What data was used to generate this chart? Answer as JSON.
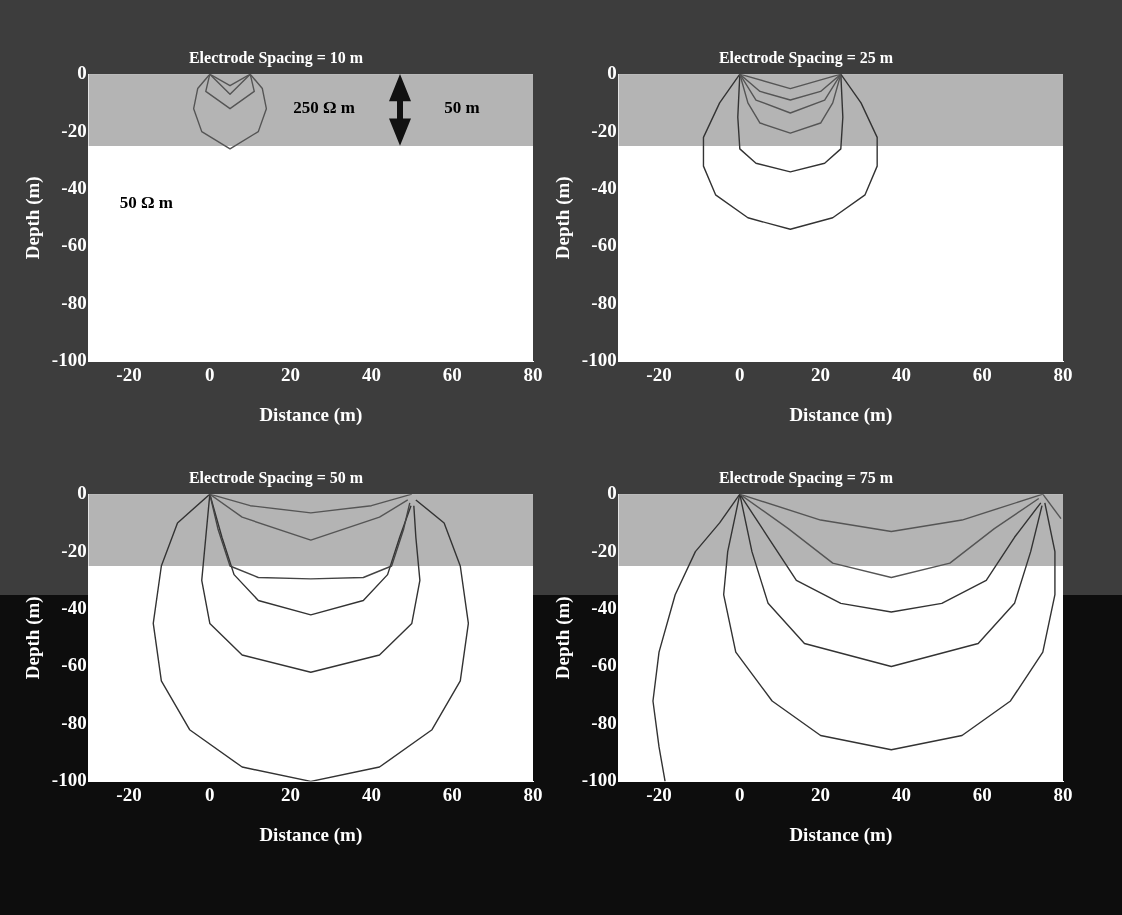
{
  "chart_data": [
    {
      "type": "line",
      "title": "Electrode Spacing = 10 m",
      "xlabel": "Distance (m)",
      "ylabel": "Depth (m)",
      "xlim": [
        -30,
        80
      ],
      "ylim": [
        -100,
        0
      ],
      "xticks": [
        -20,
        0,
        20,
        40,
        60,
        80
      ],
      "yticks": [
        -100,
        -80,
        -60,
        -40,
        -20,
        0
      ],
      "grid": false,
      "legend": false,
      "marker": "none",
      "line_style": "solid",
      "bands": [
        {
          "axis": "y",
          "from": -25,
          "to": 0,
          "color": "#b4b4b4"
        }
      ],
      "annotations": [
        "250 Ω m",
        "50 m",
        "50 Ω m"
      ],
      "series": [
        {
          "color": "#555555",
          "x": [
            0,
            -3,
            -4,
            -2,
            5,
            12,
            14,
            13,
            10
          ],
          "values": [
            0,
            -5,
            -12,
            -20,
            -26,
            -20,
            -12,
            -5,
            0
          ]
        },
        {
          "color": "#555555",
          "x": [
            0,
            -1,
            5,
            11,
            10
          ],
          "values": [
            0,
            -6,
            -12,
            -6,
            0
          ]
        },
        {
          "color": "#555555",
          "x": [
            0,
            5,
            10
          ],
          "values": [
            0,
            -7,
            0
          ]
        },
        {
          "color": "#555555",
          "x": [
            0,
            5,
            10
          ],
          "values": [
            0,
            -4,
            0
          ]
        }
      ]
    },
    {
      "type": "line",
      "title": "Electrode Spacing = 25 m",
      "xlabel": "Distance (m)",
      "ylabel": "Depth (m)",
      "xlim": [
        -30,
        80
      ],
      "ylim": [
        -100,
        0
      ],
      "xticks": [
        -20,
        0,
        20,
        40,
        60,
        80
      ],
      "yticks": [
        -100,
        -80,
        -60,
        -40,
        -20,
        0
      ],
      "grid": false,
      "legend": false,
      "marker": "none",
      "line_style": "solid",
      "bands": [
        {
          "axis": "y",
          "from": -25,
          "to": 0,
          "color": "#b4b4b4"
        }
      ],
      "series": [
        {
          "color": "#555555",
          "x": [
            0,
            12.5,
            25
          ],
          "values": [
            0,
            -5,
            0
          ]
        },
        {
          "color": "#555555",
          "x": [
            0,
            5,
            12.5,
            20,
            25
          ],
          "values": [
            0,
            -6,
            -9,
            -6,
            0
          ]
        },
        {
          "color": "#555555",
          "x": [
            0,
            4,
            12.5,
            21,
            25
          ],
          "values": [
            0,
            -9,
            -13.5,
            -9,
            0
          ]
        },
        {
          "color": "#555555",
          "x": [
            0,
            2,
            5,
            12.5,
            20,
            23,
            25
          ],
          "values": [
            0,
            -10,
            -17,
            -20.5,
            -17,
            -10,
            0
          ]
        },
        {
          "color": "#333333",
          "x": [
            0,
            -0.5,
            0,
            4,
            12.5,
            21,
            25,
            25.5,
            25
          ],
          "values": [
            0,
            -15,
            -26,
            -31,
            -34,
            -31,
            -26,
            -15,
            0
          ]
        },
        {
          "color": "#333333",
          "x": [
            0,
            -5,
            -9,
            -9,
            -6,
            2,
            12.5,
            23,
            31,
            34,
            34,
            30,
            25
          ],
          "values": [
            0,
            -10,
            -22,
            -32,
            -42,
            -50,
            -54,
            -50,
            -42,
            -32,
            -22,
            -10,
            0
          ]
        }
      ]
    },
    {
      "type": "line",
      "title": "Electrode Spacing = 50 m",
      "xlabel": "Distance (m)",
      "ylabel": "Depth (m)",
      "xlim": [
        -30,
        80
      ],
      "ylim": [
        -100,
        0
      ],
      "xticks": [
        -20,
        0,
        20,
        40,
        60,
        80
      ],
      "yticks": [
        -100,
        -80,
        -60,
        -40,
        -20,
        0
      ],
      "grid": false,
      "legend": false,
      "marker": "none",
      "line_style": "solid",
      "bands": [
        {
          "axis": "y",
          "from": -25,
          "to": 0,
          "color": "#b4b4b4"
        }
      ],
      "series": [
        {
          "color": "#555555",
          "x": [
            0,
            10,
            25,
            40,
            50
          ],
          "values": [
            0,
            -4,
            -6.5,
            -4,
            0
          ]
        },
        {
          "color": "#555555",
          "x": [
            0,
            8,
            25,
            42,
            49
          ],
          "values": [
            0,
            -8,
            -16,
            -8,
            -2
          ]
        },
        {
          "color": "#444444",
          "x": [
            0,
            2,
            5,
            12,
            25,
            38,
            45,
            48,
            49.5
          ],
          "values": [
            0,
            -12,
            -25,
            -29,
            -29.5,
            -29,
            -25,
            -12,
            -3
          ]
        },
        {
          "color": "#333333",
          "x": [
            0,
            3,
            6,
            12,
            25,
            38,
            44,
            47,
            49.8
          ],
          "values": [
            0,
            -15,
            -28,
            -37,
            -42,
            -37,
            -28,
            -15,
            -4
          ]
        },
        {
          "color": "#333333",
          "x": [
            0,
            -1,
            -2,
            0,
            8,
            25,
            42,
            50,
            52,
            51,
            50.5
          ],
          "values": [
            0,
            -15,
            -30,
            -45,
            -56,
            -62,
            -56,
            -45,
            -30,
            -15,
            -4
          ]
        },
        {
          "color": "#333333",
          "x": [
            0,
            -8,
            -12,
            -14,
            -12,
            -5,
            8,
            25,
            42,
            55,
            62,
            64,
            62,
            58,
            51
          ],
          "values": [
            0,
            -10,
            -25,
            -45,
            -65,
            -82,
            -95,
            -100,
            -95,
            -82,
            -65,
            -45,
            -25,
            -10,
            -2
          ]
        }
      ]
    },
    {
      "type": "line",
      "title": "Electrode Spacing = 75 m",
      "xlabel": "Distance (m)",
      "ylabel": "Depth (m)",
      "xlim": [
        -30,
        80
      ],
      "ylim": [
        -100,
        0
      ],
      "xticks": [
        -20,
        0,
        20,
        40,
        60,
        80
      ],
      "yticks": [
        -100,
        -80,
        -60,
        -40,
        -20,
        0
      ],
      "grid": false,
      "legend": false,
      "marker": "none",
      "line_style": "solid",
      "bands": [
        {
          "axis": "y",
          "from": -25,
          "to": 0,
          "color": "#b4b4b4"
        }
      ],
      "series": [
        {
          "color": "#555555",
          "x": [
            0,
            20,
            37.5,
            55,
            75
          ],
          "values": [
            0,
            -9,
            -13,
            -9,
            0
          ]
        },
        {
          "color": "#555555",
          "x": [
            0,
            12,
            23,
            37.5,
            52,
            63,
            74
          ],
          "values": [
            0,
            -12,
            -24,
            -29,
            -24,
            -12,
            -1.5
          ]
        },
        {
          "color": "#333333",
          "x": [
            0,
            7,
            14,
            25,
            37.5,
            50,
            61,
            68,
            74.5
          ],
          "values": [
            0,
            -15,
            -30,
            -38,
            -41,
            -38,
            -30,
            -15,
            -3
          ]
        },
        {
          "color": "#333333",
          "x": [
            0,
            3,
            7,
            16,
            37.5,
            59,
            68,
            72,
            74.8
          ],
          "values": [
            0,
            -20,
            -38,
            -52,
            -60,
            -52,
            -38,
            -20,
            -4
          ]
        },
        {
          "color": "#333333",
          "x": [
            0,
            -3,
            -4,
            -1,
            8,
            20,
            37.5,
            55,
            67,
            75,
            78,
            78,
            75.5
          ],
          "values": [
            0,
            -20,
            -35,
            -55,
            -72,
            -84,
            -89,
            -84,
            -72,
            -55,
            -35,
            -20,
            -3
          ]
        },
        {
          "color": "#333333",
          "x": [
            0,
            -5,
            -11,
            -16,
            -20,
            -21.5,
            -20,
            -18.5
          ],
          "values": [
            0,
            -10,
            -20,
            -35,
            -55,
            -72,
            -88,
            -100
          ]
        },
        {
          "color": "#555555",
          "x": [
            75,
            79.5
          ],
          "values": [
            0,
            -8.5
          ]
        }
      ]
    }
  ]
}
